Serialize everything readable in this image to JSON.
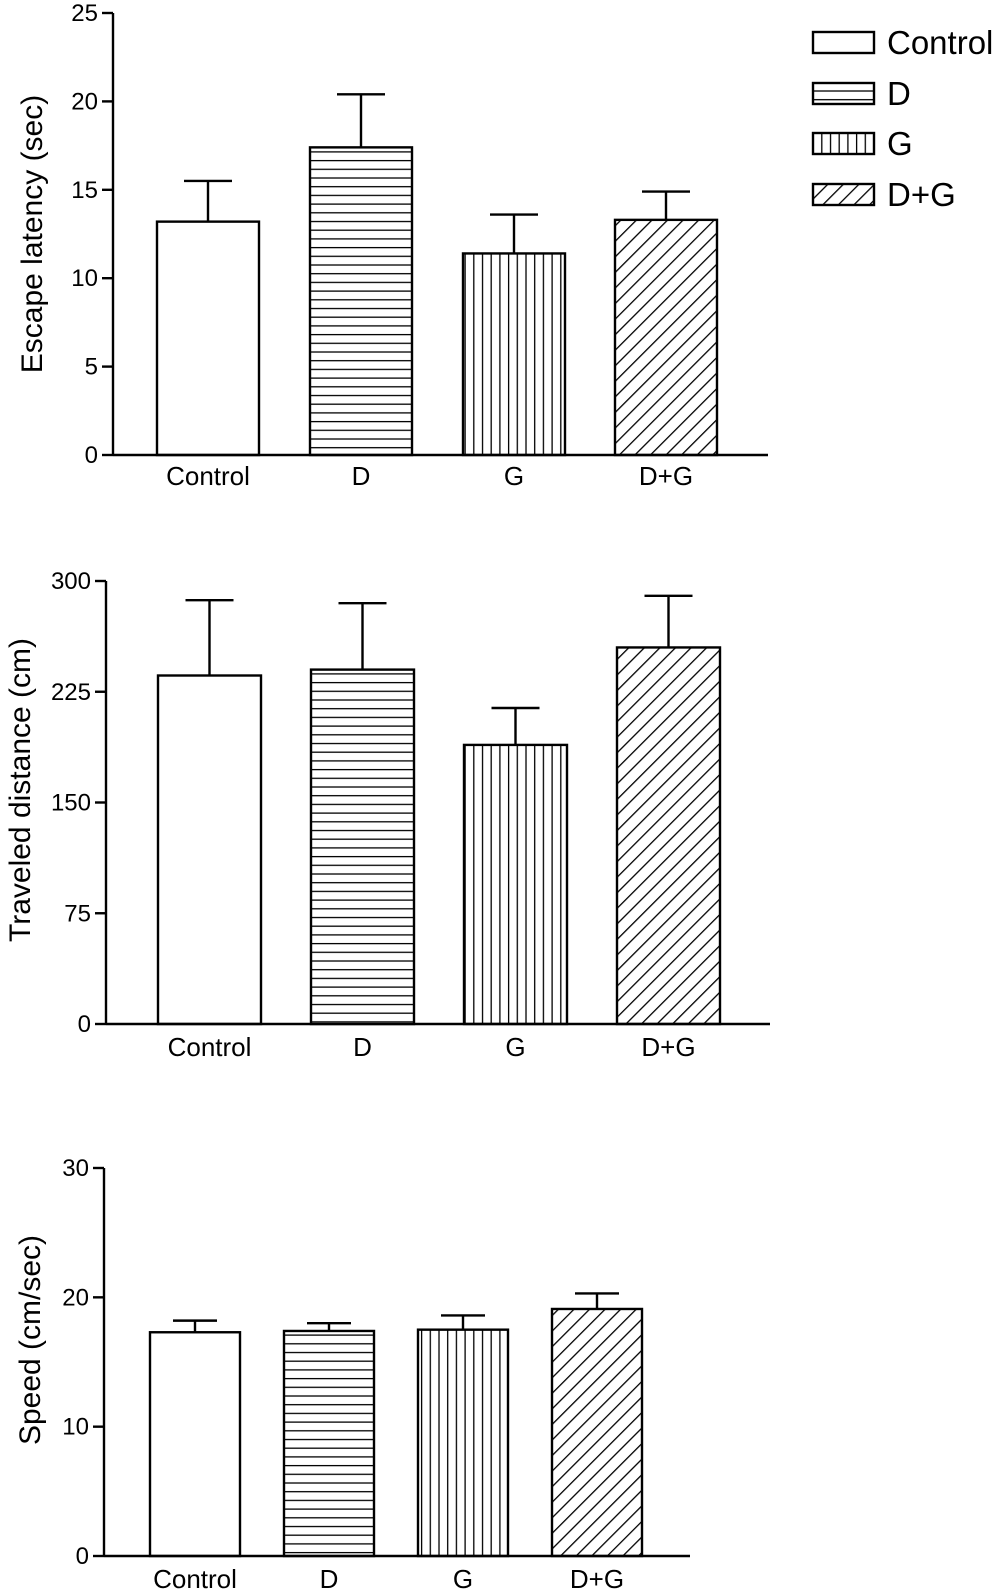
{
  "legend": {
    "entries": [
      {
        "label": "Control",
        "pattern": "none"
      },
      {
        "label": "D",
        "pattern": "horizontal"
      },
      {
        "label": "G",
        "pattern": "vertical"
      },
      {
        "label": "D+G",
        "pattern": "diagonal"
      }
    ]
  },
  "colors": {
    "stroke": "#000000",
    "fill": "#ffffff"
  },
  "chart_data": [
    {
      "type": "bar",
      "title": "",
      "xlabel": "",
      "ylabel": "Escape latency (sec)",
      "ylim": [
        0,
        25
      ],
      "yticks": [
        "0",
        "5",
        "10",
        "15",
        "20",
        "25"
      ],
      "categories": [
        "Control",
        "D",
        "G",
        "D+G"
      ],
      "values": [
        13.2,
        17.4,
        11.4,
        13.3
      ],
      "errors": [
        2.3,
        3.0,
        2.2,
        1.6
      ],
      "patterns": [
        "none",
        "horizontal",
        "vertical",
        "diagonal"
      ]
    },
    {
      "type": "bar",
      "title": "",
      "xlabel": "",
      "ylabel": "Traveled distance (cm)",
      "ylim": [
        0,
        300
      ],
      "yticks": [
        "0",
        "75",
        "150",
        "225",
        "300"
      ],
      "categories": [
        "Control",
        "D",
        "G",
        "D+G"
      ],
      "values": [
        236,
        240,
        189,
        255
      ],
      "errors": [
        51,
        45,
        25,
        35
      ],
      "patterns": [
        "none",
        "horizontal",
        "vertical",
        "diagonal"
      ]
    },
    {
      "type": "bar",
      "title": "",
      "xlabel": "",
      "ylabel": "Speed (cm/sec)",
      "ylim": [
        0,
        30
      ],
      "yticks": [
        "0",
        "10",
        "20",
        "30"
      ],
      "categories": [
        "Control",
        "D",
        "G",
        "D+G"
      ],
      "values": [
        17.3,
        17.4,
        17.5,
        19.1
      ],
      "errors": [
        0.9,
        0.6,
        1.1,
        1.2
      ],
      "patterns": [
        "none",
        "horizontal",
        "vertical",
        "diagonal"
      ]
    }
  ]
}
